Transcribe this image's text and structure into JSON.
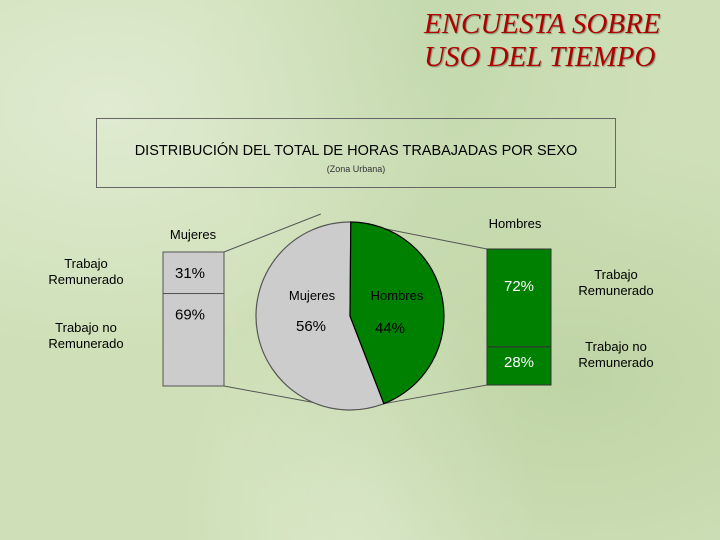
{
  "header": {
    "line1": "ENCUESTA SOBRE",
    "line2": "USO DEL TIEMPO"
  },
  "chart_data": {
    "type": "bar-of-pie",
    "title": "DISTRIBUCIÓN DEL TOTAL DE HORAS TRABAJADAS POR  SEXO",
    "subtitle": "(Zona Urbana)",
    "pie": {
      "slices": [
        {
          "name": "Mujeres",
          "value": 56,
          "label": "56%",
          "color": "#cccccc"
        },
        {
          "name": "Hombres",
          "value": 44,
          "label": "44%",
          "color": "#008000"
        }
      ]
    },
    "left_bar": {
      "name": "Mujeres",
      "segments": [
        {
          "name": "Trabajo Remunerado",
          "value": 31,
          "label": "31%",
          "category_lines": [
            "Trabajo",
            "Remunerado"
          ]
        },
        {
          "name": "Trabajo no Remunerado",
          "value": 69,
          "label": "69%",
          "category_lines": [
            "Trabajo no",
            "Remunerado"
          ]
        }
      ],
      "color": "#cccccc"
    },
    "right_bar": {
      "name": "Hombres",
      "segments": [
        {
          "name": "Trabajo Remunerado",
          "value": 72,
          "label": "72%",
          "category_lines": [
            "Trabajo",
            "Remunerado"
          ]
        },
        {
          "name": "Trabajo no Remunerado",
          "value": 28,
          "label": "28%",
          "category_lines": [
            "Trabajo no",
            "Remunerado"
          ]
        }
      ],
      "color": "#008000"
    },
    "colors": {
      "mujeres": "#cccccc",
      "hombres": "#008000",
      "outline": "#000000",
      "connector": "#555555"
    }
  }
}
